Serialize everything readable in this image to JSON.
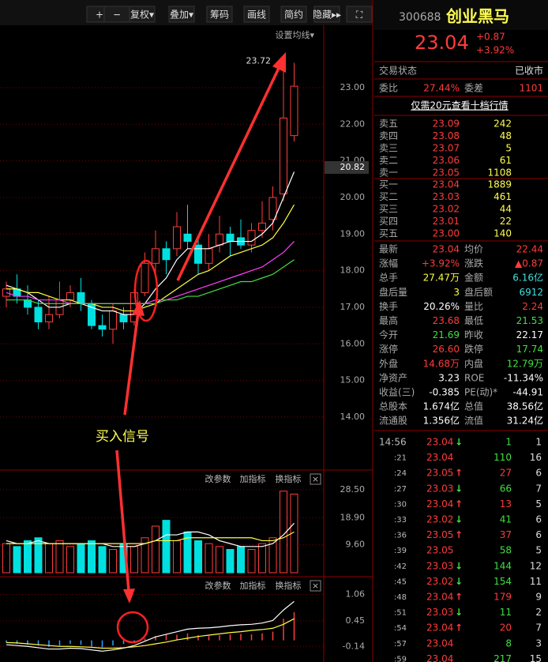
{
  "toolbar": {
    "buttons": [
      "+",
      "−",
      "复权▾",
      "叠加▾",
      "筹码",
      "画线",
      "简约",
      "隐藏▸▸",
      "⛶"
    ],
    "ma_setting": "设置均线▾",
    "panel_tools": [
      "改参数",
      "加指标",
      "换指标"
    ],
    "close": "×"
  },
  "chart_data": [
    {
      "type": "candlestick",
      "up_color": "#ff3c3c",
      "down_color": "#00e0e0",
      "grid": true,
      "open": [
        17.3,
        17.5,
        17.2,
        17.0,
        16.6,
        16.8,
        17.2,
        17.4,
        17.1,
        16.5,
        16.4,
        16.8,
        16.6,
        17.4,
        18.2,
        18.6,
        18.6,
        19.0,
        18.7,
        18.2,
        18.7,
        19.0,
        18.9,
        18.7,
        19.1,
        19.4,
        20.1,
        21.69
      ],
      "close": [
        17.5,
        17.3,
        17.0,
        16.6,
        16.8,
        17.2,
        17.4,
        17.1,
        16.5,
        16.4,
        16.9,
        16.6,
        17.4,
        18.2,
        18.6,
        18.3,
        19.2,
        18.8,
        18.2,
        18.6,
        19.0,
        18.8,
        18.7,
        19.1,
        19.3,
        20.0,
        22.17,
        23.04
      ],
      "high": [
        17.7,
        17.9,
        17.6,
        17.2,
        17.3,
        17.7,
        17.6,
        17.8,
        17.2,
        16.8,
        17.1,
        17.0,
        17.5,
        18.5,
        19.1,
        18.8,
        19.6,
        19.8,
        18.9,
        19.0,
        19.5,
        19.2,
        19.4,
        19.3,
        19.9,
        20.3,
        23.72,
        23.68
      ],
      "low": [
        17.0,
        17.1,
        16.8,
        16.4,
        16.4,
        16.7,
        17.0,
        16.9,
        16.4,
        16.2,
        16.0,
        16.4,
        16.5,
        17.3,
        17.9,
        17.9,
        18.4,
        18.6,
        17.9,
        18.0,
        18.5,
        18.4,
        18.6,
        18.5,
        18.9,
        19.1,
        19.9,
        21.53
      ],
      "series": [
        {
          "color": "#ffffff",
          "values": [
            17.6,
            17.5,
            17.4,
            17.2,
            17.0,
            17.0,
            17.1,
            17.1,
            17.0,
            16.9,
            16.9,
            16.8,
            16.8,
            17.1,
            17.5,
            17.8,
            18.3,
            18.6,
            18.6,
            18.6,
            18.7,
            18.8,
            18.8,
            18.8,
            19.0,
            19.3,
            20.0,
            20.7
          ]
        },
        {
          "color": "#ffff40",
          "values": [
            17.5,
            17.5,
            17.4,
            17.4,
            17.3,
            17.2,
            17.2,
            17.1,
            17.1,
            17.0,
            17.0,
            16.9,
            16.9,
            17.0,
            17.1,
            17.3,
            17.5,
            17.7,
            17.9,
            18.0,
            18.2,
            18.4,
            18.5,
            18.6,
            18.7,
            18.9,
            19.3,
            19.8
          ]
        },
        {
          "color": "#ff40ff",
          "values": [
            17.4,
            17.3,
            17.3,
            17.2,
            17.2,
            17.2,
            17.1,
            17.1,
            17.1,
            17.1,
            17.1,
            17.1,
            17.1,
            17.1,
            17.2,
            17.2,
            17.3,
            17.4,
            17.5,
            17.6,
            17.7,
            17.8,
            17.9,
            18.0,
            18.1,
            18.3,
            18.5,
            18.8
          ]
        },
        {
          "color": "#40e040",
          "values": [
            17.2,
            17.2,
            17.2,
            17.1,
            17.1,
            17.1,
            17.1,
            17.1,
            17.1,
            17.1,
            17.1,
            17.1,
            17.1,
            17.1,
            17.1,
            17.2,
            17.2,
            17.3,
            17.3,
            17.4,
            17.5,
            17.6,
            17.7,
            17.7,
            17.8,
            17.9,
            18.1,
            18.3
          ]
        }
      ],
      "ylim": [
        12.66,
        24.64
      ],
      "yticks": [
        {
          "value": 14,
          "label": "14.00"
        },
        {
          "value": 15,
          "label": "15.00"
        },
        {
          "value": 16,
          "label": "16.00"
        },
        {
          "value": 17,
          "label": "17.00"
        },
        {
          "value": 18,
          "label": "18.00"
        },
        {
          "value": 19,
          "label": "19.00"
        },
        {
          "value": 20,
          "label": "20.00"
        },
        {
          "value": 21,
          "label": "21.00"
        },
        {
          "value": 22,
          "label": "22.00"
        },
        {
          "value": 23,
          "label": "23.00"
        }
      ],
      "high_label": "23.72",
      "cursor_label": {
        "value": 20.82,
        "label": "20.82"
      },
      "annotation": "买入信号"
    },
    {
      "type": "bar",
      "values": [
        10,
        9,
        11,
        12,
        10,
        11,
        9,
        10,
        11,
        9,
        8,
        10,
        9,
        12,
        16,
        18,
        11,
        14,
        11,
        10,
        9,
        8,
        9,
        8,
        10,
        12,
        28,
        27
      ],
      "series": [
        {
          "color": "#ffffff",
          "values": [
            11,
            10,
            10,
            11,
            10,
            10,
            10,
            10,
            10,
            10,
            9,
            9,
            9,
            10,
            11,
            13,
            13,
            14,
            14,
            13,
            11,
            10,
            9,
            9,
            9,
            10,
            13,
            17
          ]
        },
        {
          "color": "#ffff40",
          "values": [
            10,
            10,
            10,
            10,
            10,
            10,
            10,
            10,
            10,
            10,
            10,
            10,
            10,
            10,
            11,
            11,
            11,
            12,
            12,
            12,
            12,
            12,
            12,
            12,
            11,
            11,
            12,
            14
          ]
        }
      ],
      "ylim": [
        0,
        33.9
      ],
      "yticks": [
        {
          "value": 9.6,
          "label": "9.60"
        },
        {
          "value": 18.9,
          "label": "18.90"
        },
        {
          "value": 28.5,
          "label": "28.50"
        }
      ]
    },
    {
      "type": "bar",
      "values": [
        -0.05,
        -0.08,
        -0.1,
        -0.12,
        -0.15,
        -0.12,
        -0.08,
        -0.1,
        -0.14,
        -0.16,
        -0.12,
        -0.08,
        -0.03,
        0.04,
        0.1,
        0.14,
        0.13,
        0.16,
        0.12,
        0.1,
        0.12,
        0.14,
        0.15,
        0.14,
        0.16,
        0.2,
        0.5,
        0.65
      ],
      "series": [
        {
          "color": "#ffffff",
          "values": [
            -0.1,
            -0.12,
            -0.14,
            -0.17,
            -0.2,
            -0.2,
            -0.18,
            -0.19,
            -0.22,
            -0.25,
            -0.22,
            -0.18,
            -0.12,
            -0.02,
            0.08,
            0.14,
            0.2,
            0.26,
            0.28,
            0.29,
            0.31,
            0.34,
            0.36,
            0.37,
            0.4,
            0.46,
            0.7,
            0.9
          ]
        },
        {
          "color": "#ffff40",
          "values": [
            -0.05,
            -0.06,
            -0.08,
            -0.1,
            -0.12,
            -0.14,
            -0.14,
            -0.15,
            -0.16,
            -0.18,
            -0.18,
            -0.17,
            -0.15,
            -0.12,
            -0.08,
            -0.04,
            0.01,
            0.05,
            0.09,
            0.12,
            0.15,
            0.18,
            0.2,
            0.23,
            0.25,
            0.28,
            0.37,
            0.5
          ]
        }
      ],
      "ylim": [
        -0.5,
        1.38
      ],
      "yticks": [
        {
          "value": -0.14,
          "label": "-0.14"
        },
        {
          "value": 0.45,
          "label": "0.45"
        },
        {
          "value": 1.06,
          "label": "1.06"
        }
      ]
    }
  ],
  "quote": {
    "code": "300688",
    "name": "创业黑马",
    "price": "23.04",
    "change": "+0.87",
    "change_pct": "+3.92%",
    "status": [
      "交易状态",
      "已收市"
    ],
    "ratio": [
      "委比",
      "27.44%",
      "委差",
      "1101"
    ],
    "promo": "仅需20元查看十档行情",
    "asks": [
      [
        "卖五",
        "23.09",
        "242"
      ],
      [
        "卖四",
        "23.08",
        "48"
      ],
      [
        "卖三",
        "23.07",
        "5"
      ],
      [
        "卖二",
        "23.06",
        "61"
      ],
      [
        "卖一",
        "23.05",
        "1108"
      ]
    ],
    "bids": [
      [
        "买一",
        "23.04",
        "1889"
      ],
      [
        "买二",
        "23.03",
        "461"
      ],
      [
        "买三",
        "23.02",
        "44"
      ],
      [
        "买四",
        "23.01",
        "22"
      ],
      [
        "买五",
        "23.00",
        "140"
      ]
    ],
    "stats": [
      [
        {
          "label": "最新",
          "value": "23.04",
          "color": "#ff3c3c"
        },
        {
          "label": "均价",
          "value": "22.44",
          "color": "#ff3c3c"
        }
      ],
      [
        {
          "label": "涨幅",
          "value": "+3.92%",
          "color": "#ff3c3c"
        },
        {
          "label": "涨跌",
          "value": "▲0.87",
          "color": "#ff3c3c"
        }
      ],
      [
        {
          "label": "总手",
          "value": "27.47万",
          "color": "#ffff40"
        },
        {
          "label": "金额",
          "value": "6.16亿",
          "color": "#40e0e0"
        }
      ],
      [
        {
          "label": "盘后量",
          "value": "3",
          "color": "#ffff40"
        },
        {
          "label": "盘后额",
          "value": "6912",
          "color": "#40e0e0"
        }
      ],
      [
        {
          "label": "换手",
          "value": "20.26%",
          "color": "#ffffff"
        },
        {
          "label": "量比",
          "value": "2.24",
          "color": "#ff3c3c"
        }
      ],
      [
        {
          "label": "最高",
          "value": "23.68",
          "color": "#ff3c3c"
        },
        {
          "label": "最低",
          "value": "21.53",
          "color": "#40e040"
        }
      ],
      [
        {
          "label": "今开",
          "value": "21.69",
          "color": "#40e040"
        },
        {
          "label": "昨收",
          "value": "22.17",
          "color": "#ffffff"
        }
      ],
      [
        {
          "label": "涨停",
          "value": "26.60",
          "color": "#ff3c3c"
        },
        {
          "label": "跌停",
          "value": "17.74",
          "color": "#40e040"
        }
      ],
      [
        {
          "label": "外盘",
          "value": "14.68万",
          "color": "#ff3c3c"
        },
        {
          "label": "内盘",
          "value": "12.79万",
          "color": "#40e040"
        }
      ],
      [
        {
          "label": "净资产",
          "value": "3.23",
          "color": "#ffffff"
        },
        {
          "label": "ROE",
          "value": "-11.34%",
          "color": "#ffffff"
        }
      ],
      [
        {
          "label": "收益(三)",
          "value": "-0.385",
          "color": "#ffffff"
        },
        {
          "label": "PE(动)*",
          "value": "-44.91",
          "color": "#ffffff"
        }
      ],
      [
        {
          "label": "总股本",
          "value": "1.674亿",
          "color": "#ffffff"
        },
        {
          "label": "总值",
          "value": "38.56亿",
          "color": "#ffffff"
        }
      ],
      [
        {
          "label": "流通股",
          "value": "1.356亿",
          "color": "#ffffff"
        },
        {
          "label": "流值",
          "value": "31.24亿",
          "color": "#ffffff"
        }
      ]
    ],
    "ticks": [
      {
        "time": "14:56",
        "price": "23.04",
        "arrow": "↓",
        "vol": "1",
        "count": "1"
      },
      {
        "time": ":21",
        "price": "23.04",
        "arrow": null,
        "vol": "110",
        "count": "16"
      },
      {
        "time": ":24",
        "price": "23.05",
        "arrow": "↑",
        "vol": "27",
        "count": "6"
      },
      {
        "time": ":27",
        "price": "23.03",
        "arrow": "↓",
        "vol": "66",
        "count": "7"
      },
      {
        "time": ":30",
        "price": "23.04",
        "arrow": "↑",
        "vol": "13",
        "count": "5"
      },
      {
        "time": ":33",
        "price": "23.02",
        "arrow": "↓",
        "vol": "41",
        "count": "6"
      },
      {
        "time": ":36",
        "price": "23.05",
        "arrow": "↑",
        "vol": "37",
        "count": "6"
      },
      {
        "time": ":39",
        "price": "23.05",
        "arrow": null,
        "vol": "58",
        "count": "5"
      },
      {
        "time": ":42",
        "price": "23.03",
        "arrow": "↓",
        "vol": "144",
        "count": "12"
      },
      {
        "time": ":45",
        "price": "23.02",
        "arrow": "↓",
        "vol": "154",
        "count": "11"
      },
      {
        "time": ":48",
        "price": "23.04",
        "arrow": "↑",
        "vol": "179",
        "count": "9"
      },
      {
        "time": ":51",
        "price": "23.03",
        "arrow": "↓",
        "vol": "11",
        "count": "2"
      },
      {
        "time": ":54",
        "price": "23.04",
        "arrow": "↑",
        "vol": "20",
        "count": "7"
      },
      {
        "time": ":57",
        "price": "23.04",
        "arrow": null,
        "vol": "8",
        "count": "3"
      },
      {
        "time": ":59",
        "price": "23.04",
        "arrow": null,
        "vol": "217",
        "count": "15"
      }
    ]
  }
}
